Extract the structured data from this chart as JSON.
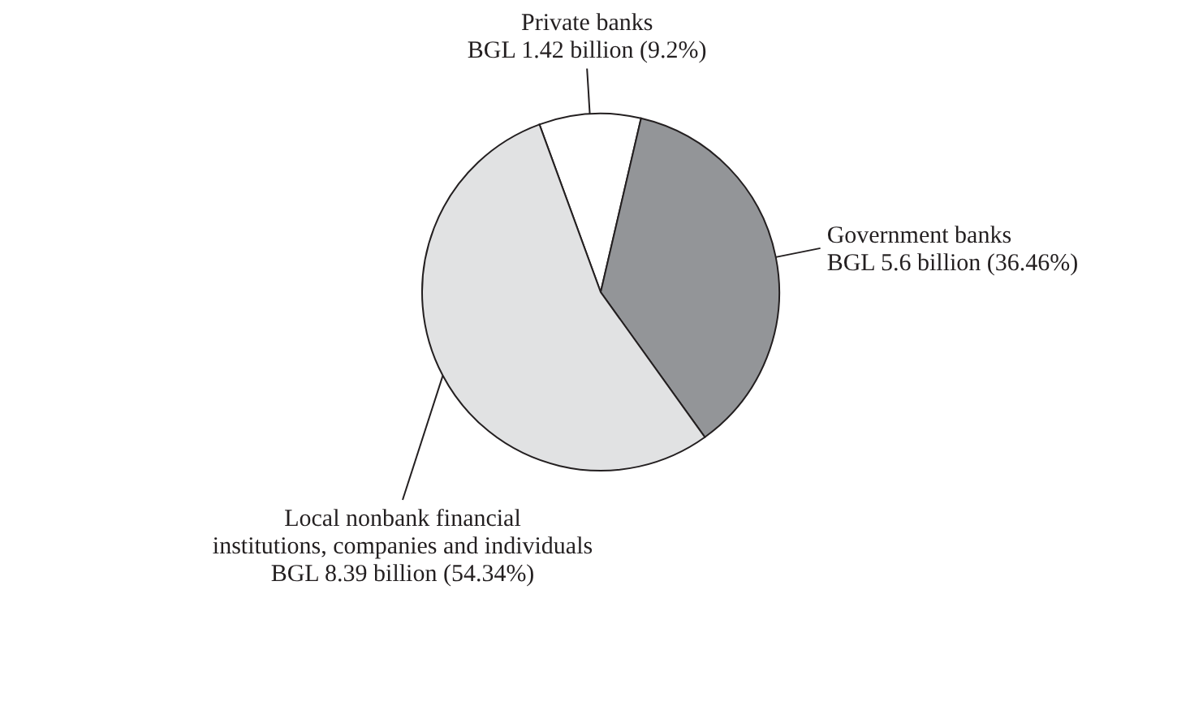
{
  "chart_data": {
    "type": "pie",
    "categories": [
      "Private banks",
      "Government banks",
      "Local nonbank financial\ninstitutions, companies and individuals"
    ],
    "values": [
      9.2,
      36.46,
      54.34
    ],
    "value_labels": [
      "BGL 1.42 billion (9.2%)",
      "BGL 5.6 billion (36.46%)",
      "BGL 8.39 billion (54.34%)"
    ],
    "colors": [
      "#ffffff",
      "#939598",
      "#e1e2e3"
    ]
  }
}
